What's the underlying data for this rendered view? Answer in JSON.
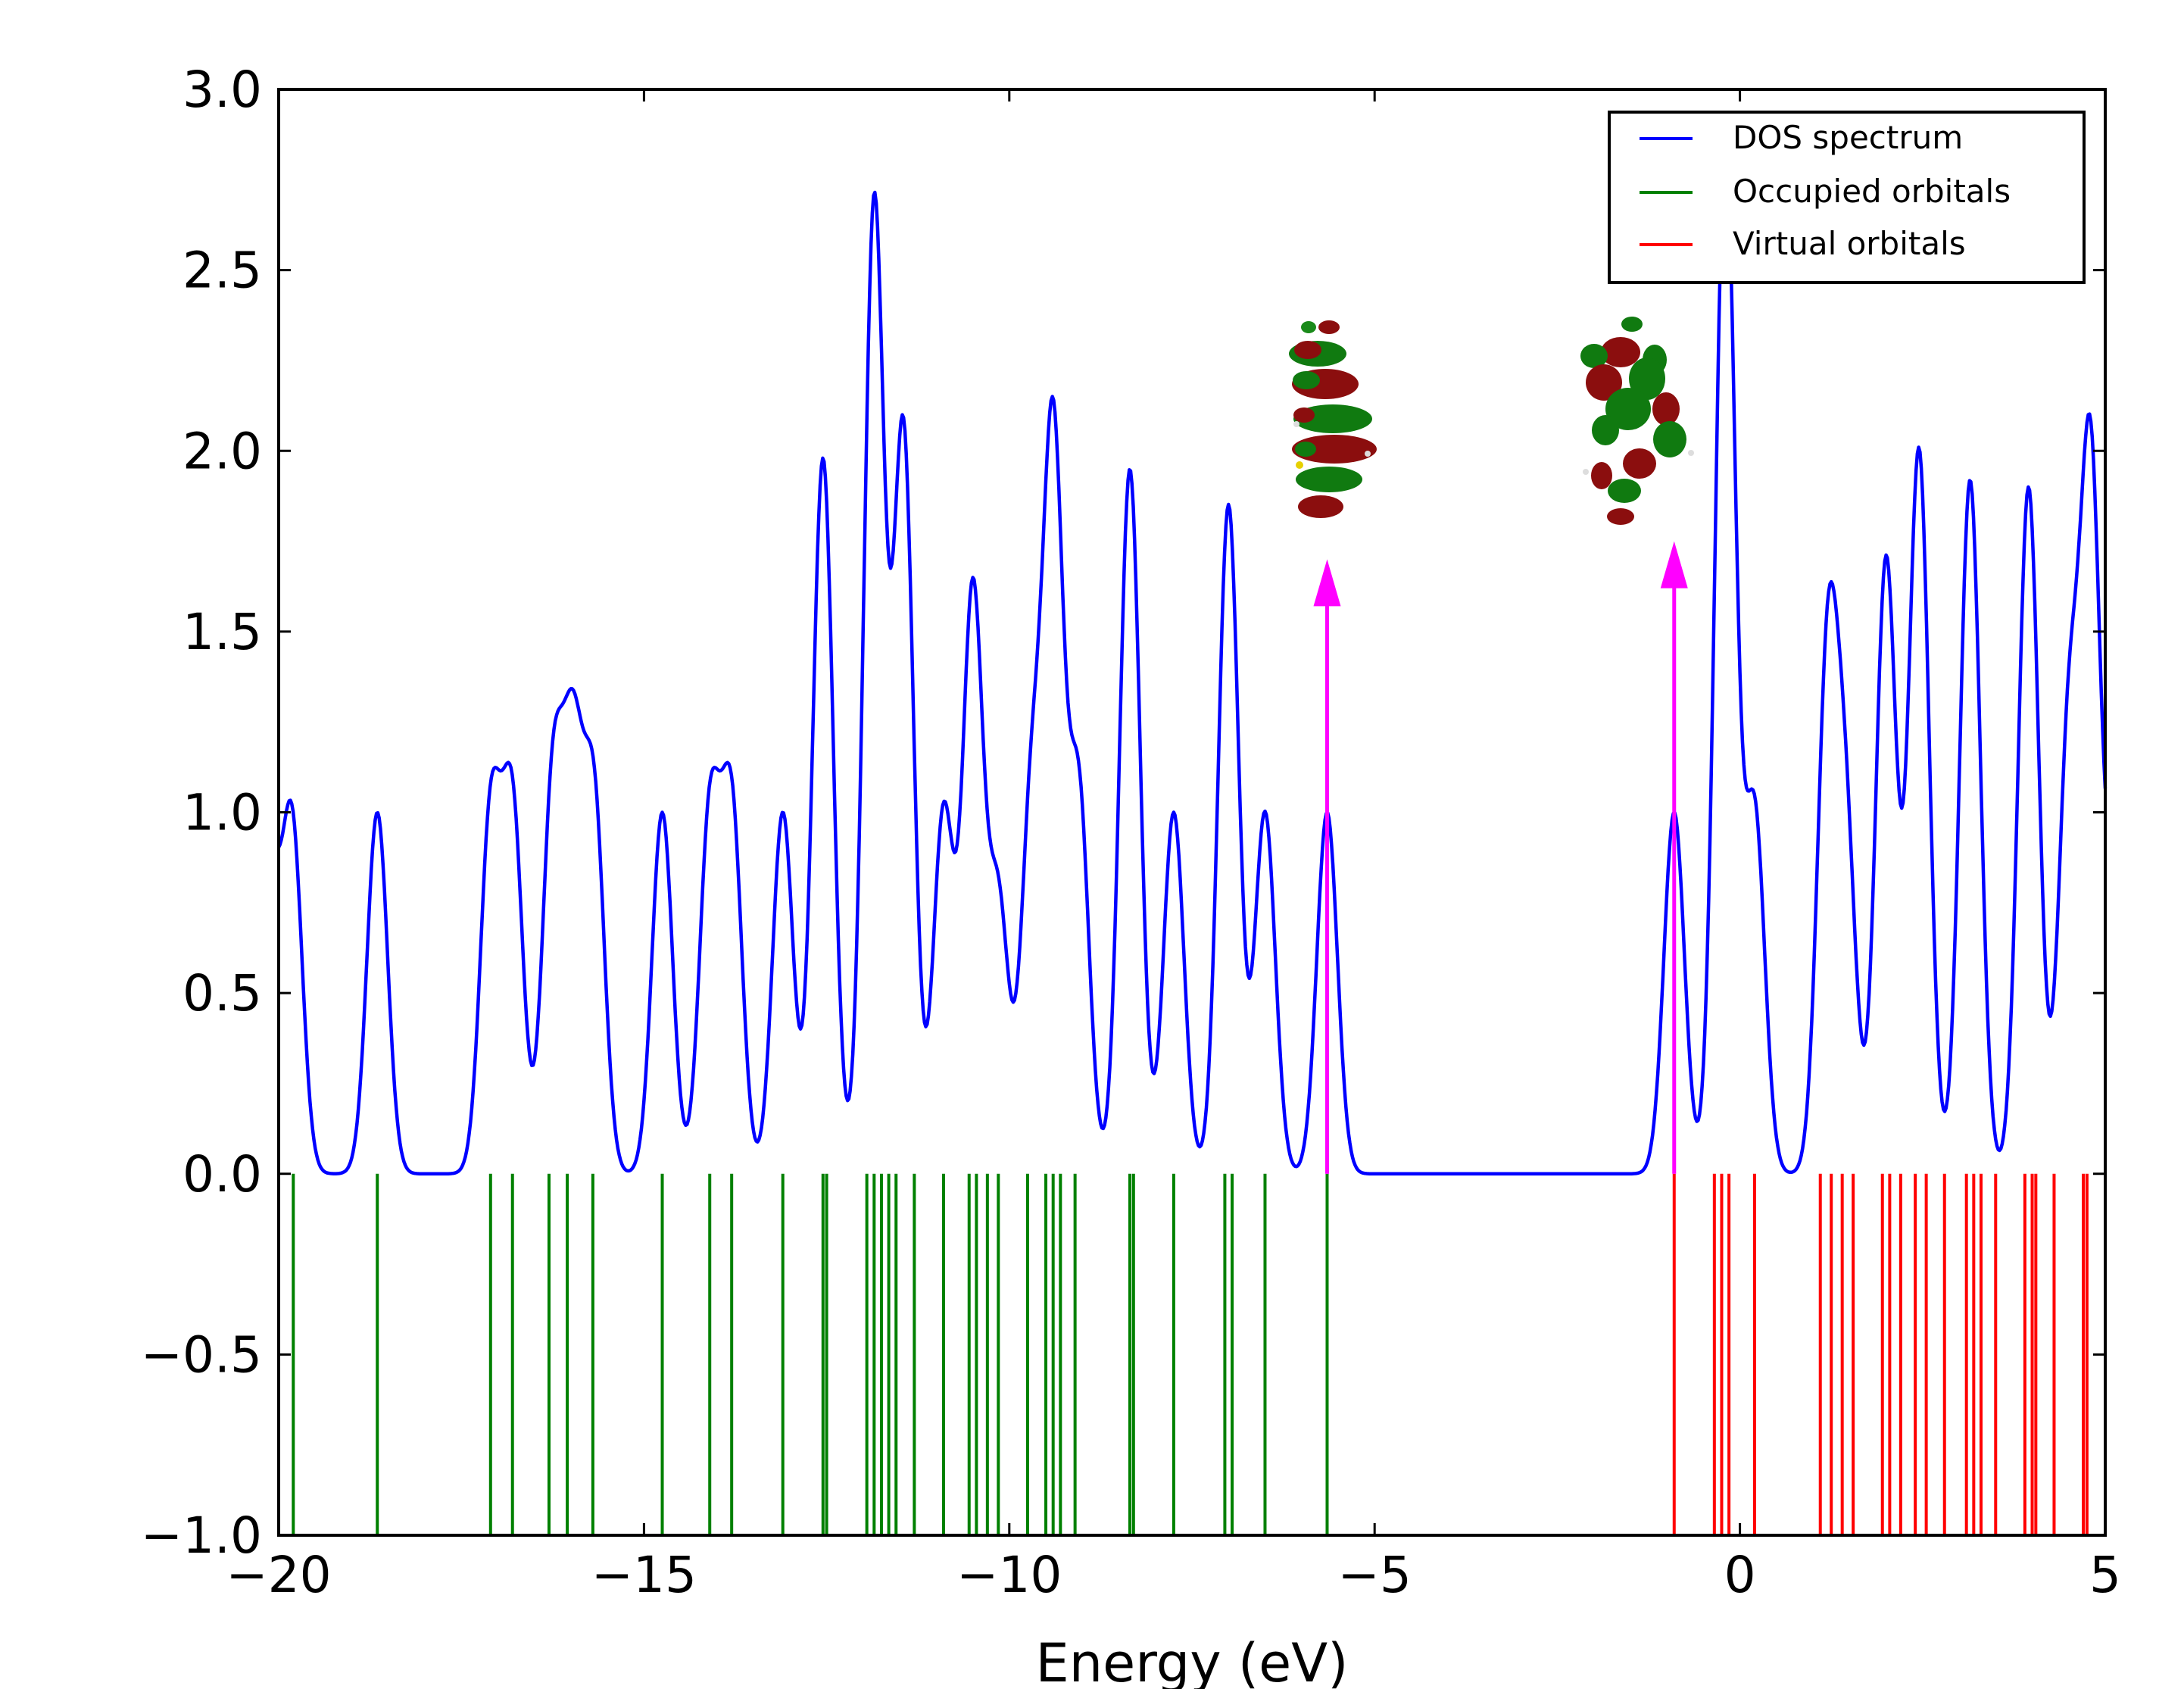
{
  "chart_data": {
    "type": "line",
    "title": "",
    "xlabel": "Energy (eV)",
    "ylabel": "",
    "xlim": [
      -20,
      5
    ],
    "ylim": [
      -1.0,
      3.0
    ],
    "grid": false,
    "xticks": [
      -20,
      -15,
      -10,
      -5,
      0,
      5
    ],
    "xtick_labels": [
      "−20",
      "−15",
      "−10",
      "−5",
      "0",
      "5"
    ],
    "yticks": [
      -1.0,
      -0.5,
      0.0,
      0.5,
      1.0,
      1.5,
      2.0,
      2.5,
      3.0
    ],
    "ytick_labels": [
      "−1.0",
      "−0.5",
      "0.0",
      "0.5",
      "1.0",
      "1.5",
      "2.0",
      "2.5",
      "3.0"
    ],
    "legend": {
      "position": "top-right",
      "entries": [
        {
          "label": "DOS spectrum",
          "color": "#0000ff"
        },
        {
          "label": "Occupied orbitals",
          "color": "#008000"
        },
        {
          "label": "Virtual orbitals",
          "color": "#ff0000"
        }
      ]
    },
    "occupied_orbitals": [
      -19.8,
      -18.65,
      -17.1,
      -16.8,
      -16.3,
      -16.05,
      -15.7,
      -14.75,
      -14.1,
      -13.8,
      -13.1,
      -12.55,
      -12.5,
      -11.95,
      -11.85,
      -11.75,
      -11.65,
      -11.55,
      -11.3,
      -10.9,
      -10.55,
      -10.45,
      -10.3,
      -10.15,
      -9.75,
      -9.5,
      -9.4,
      -9.3,
      -9.1,
      -8.35,
      -8.3,
      -7.75,
      -7.05,
      -6.95,
      -6.5,
      -5.65
    ],
    "virtual_orbitals": [
      -0.9,
      -0.35,
      -0.25,
      -0.15,
      0.2,
      1.1,
      1.25,
      1.4,
      1.55,
      1.95,
      2.05,
      2.2,
      2.4,
      2.55,
      2.8,
      3.1,
      3.2,
      3.3,
      3.5,
      3.9,
      4.0,
      4.05,
      4.3,
      4.7,
      4.75
    ],
    "dos_spectrum": {
      "sigma": 0.14,
      "peaks": [
        {
          "e": -20.15,
          "a": 0.85
        },
        {
          "e": -19.82,
          "a": 0.97
        },
        {
          "e": -18.65,
          "a": 1.0
        },
        {
          "e": -17.1,
          "a": 0.98
        },
        {
          "e": -16.8,
          "a": 1.0
        },
        {
          "e": -16.25,
          "a": 1.05
        },
        {
          "e": -15.97,
          "a": 1.08
        },
        {
          "e": -15.68,
          "a": 1.0
        },
        {
          "e": -14.75,
          "a": 1.0
        },
        {
          "e": -14.1,
          "a": 0.98
        },
        {
          "e": -13.8,
          "a": 1.0
        },
        {
          "e": -13.1,
          "a": 1.0
        },
        {
          "e": -12.55,
          "a": 1.98
        },
        {
          "e": -11.85,
          "a": 2.68
        },
        {
          "e": -11.45,
          "a": 2.05
        },
        {
          "e": -10.9,
          "a": 1.0
        },
        {
          "e": -10.5,
          "a": 1.6
        },
        {
          "e": -10.15,
          "a": 0.75
        },
        {
          "e": -9.7,
          "a": 1.0
        },
        {
          "e": -9.4,
          "a": 2.0
        },
        {
          "e": -9.05,
          "a": 1.05
        },
        {
          "e": -8.35,
          "a": 1.95
        },
        {
          "e": -7.75,
          "a": 1.0
        },
        {
          "e": -7.0,
          "a": 1.85
        },
        {
          "e": -6.5,
          "a": 1.0
        },
        {
          "e": -5.65,
          "a": 1.0
        },
        {
          "e": -0.9,
          "a": 1.0
        },
        {
          "e": -0.2,
          "a": 2.85
        },
        {
          "e": 0.2,
          "a": 1.0
        },
        {
          "e": 1.2,
          "a": 1.4
        },
        {
          "e": 1.45,
          "a": 0.9
        },
        {
          "e": 2.0,
          "a": 1.7
        },
        {
          "e": 2.45,
          "a": 2.0
        },
        {
          "e": 3.15,
          "a": 1.92
        },
        {
          "e": 3.95,
          "a": 1.9
        },
        {
          "e": 4.5,
          "a": 1.2
        },
        {
          "e": 4.8,
          "a": 1.95
        },
        {
          "e": 5.2,
          "a": 1.0
        }
      ]
    },
    "annotations": [
      {
        "type": "arrow",
        "x": -5.65,
        "y_from": 0.0,
        "y_to": 1.7,
        "color": "#ff00ff",
        "label": "HOMO orbital image"
      },
      {
        "type": "arrow",
        "x": -0.9,
        "y_from": 0.0,
        "y_to": 1.75,
        "color": "#ff00ff",
        "label": "LUMO orbital image"
      }
    ]
  }
}
